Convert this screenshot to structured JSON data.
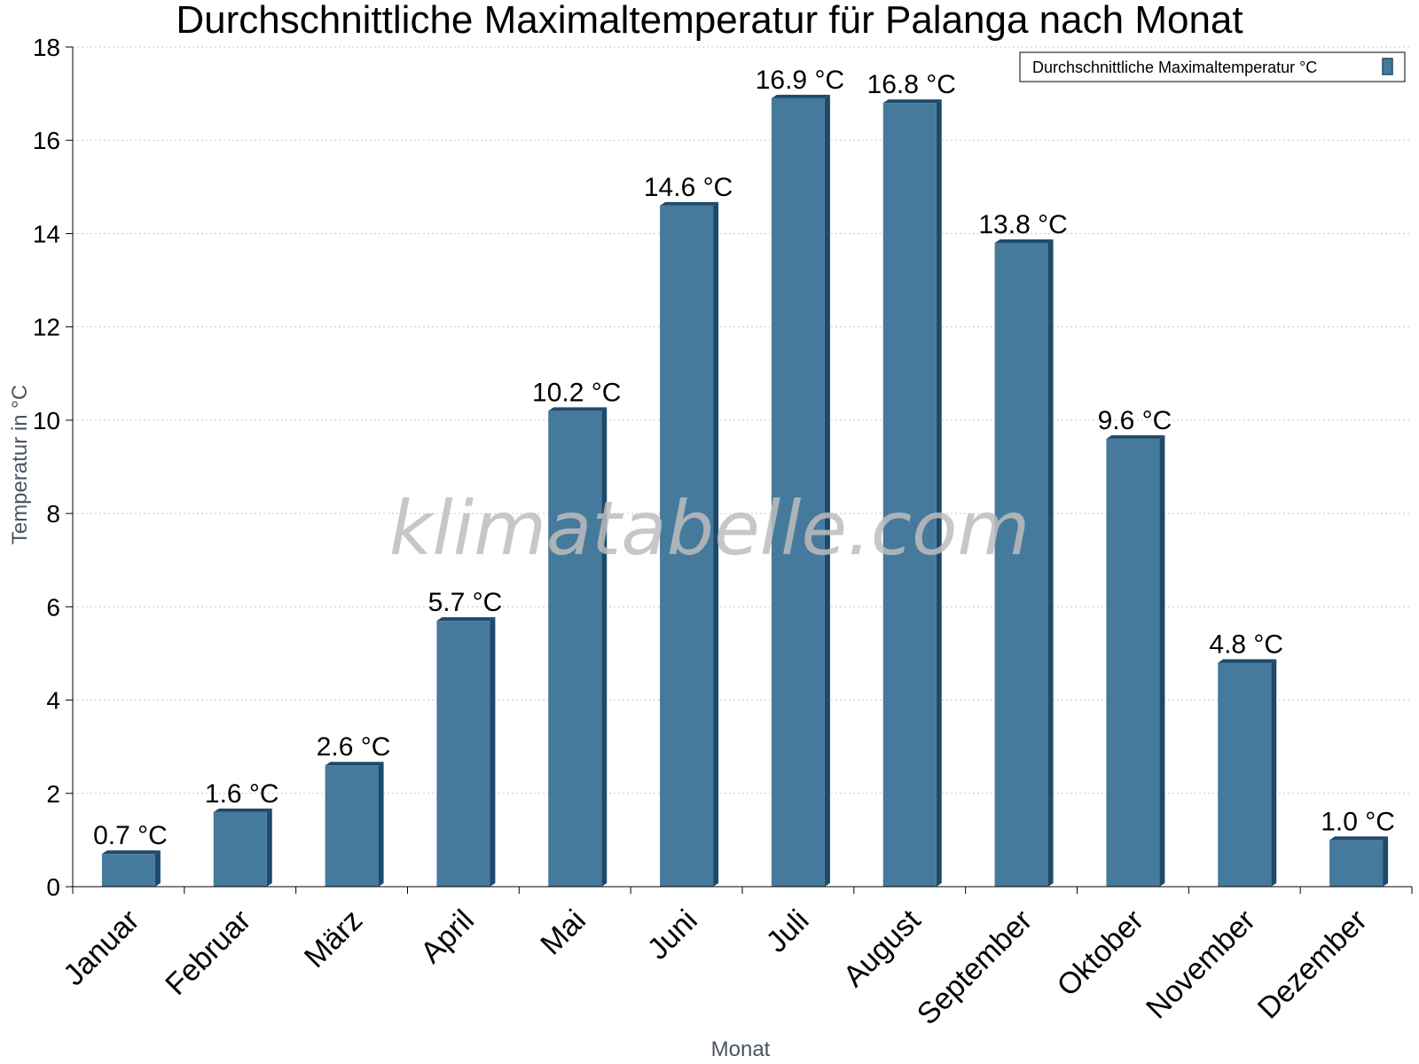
{
  "chart_data": {
    "type": "bar",
    "title": "Durchschnittliche Maximaltemperatur für Palanga nach Monat",
    "xlabel": "Monat",
    "ylabel": "Temperatur in °C",
    "ylim": [
      0,
      18
    ],
    "ytick_step": 2,
    "grid": true,
    "legend_position": "top-right",
    "categories": [
      "Januar",
      "Februar",
      "März",
      "April",
      "Mai",
      "Juni",
      "Juli",
      "August",
      "September",
      "Oktober",
      "November",
      "Dezember"
    ],
    "series": [
      {
        "name": "Durchschnittliche Maximaltemperatur °C",
        "values": [
          0.7,
          1.6,
          2.6,
          5.7,
          10.2,
          14.6,
          16.9,
          16.8,
          13.8,
          9.6,
          4.8,
          1.0
        ],
        "labels": [
          "0.7 °C",
          "1.6 °C",
          "2.6 °C",
          "5.7 °C",
          "10.2 °C",
          "14.6 °C",
          "16.9 °C",
          "16.8 °C",
          "13.8 °C",
          "9.6 °C",
          "4.8 °C",
          "1.0 °C"
        ],
        "color": "#467a9c",
        "shade_color": "#1d4a6c"
      }
    ]
  },
  "watermark": "klimatabelle.com"
}
